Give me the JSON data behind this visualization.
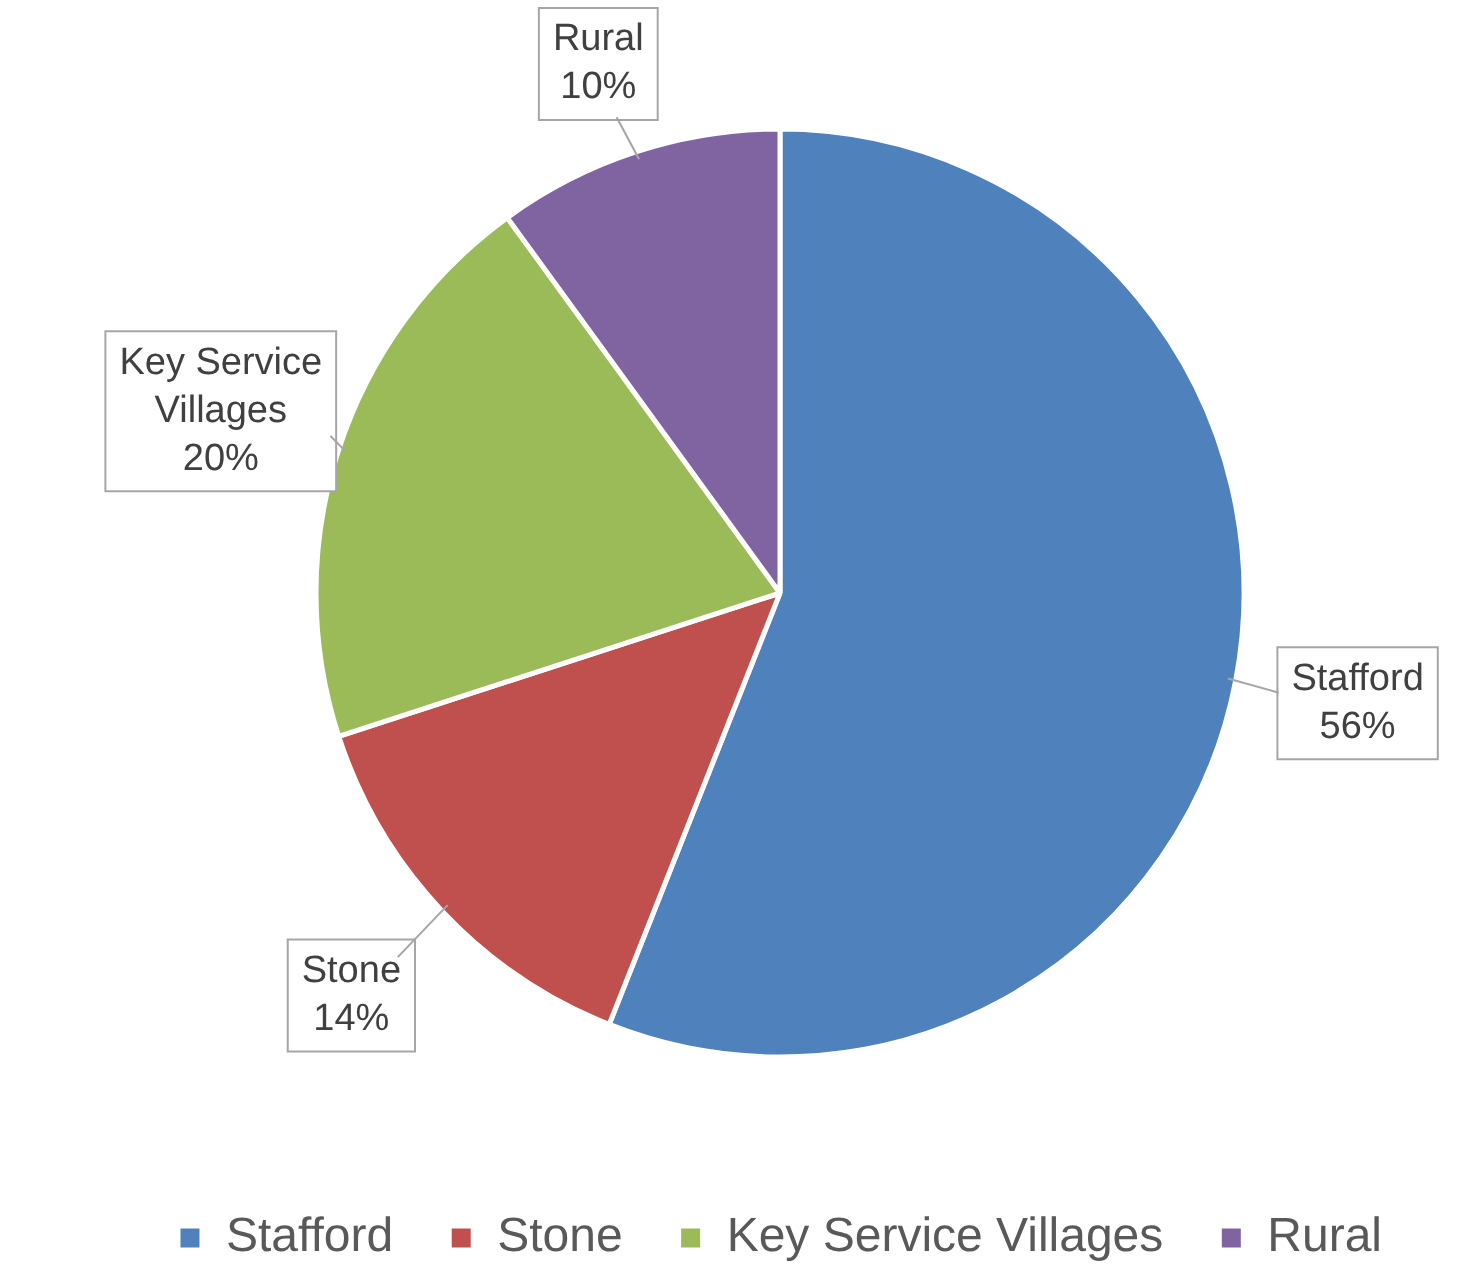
{
  "chart_data": {
    "type": "pie",
    "categories": [
      "Stafford",
      "Stone",
      "Key Service Villages",
      "Rural"
    ],
    "values": [
      56,
      14,
      20,
      10
    ],
    "colors": [
      "#4f81bd",
      "#c0504d",
      "#9bbb59",
      "#8064a2"
    ],
    "value_labels": [
      "56%",
      "14%",
      "20%",
      "10%"
    ],
    "legend": "bottom"
  }
}
